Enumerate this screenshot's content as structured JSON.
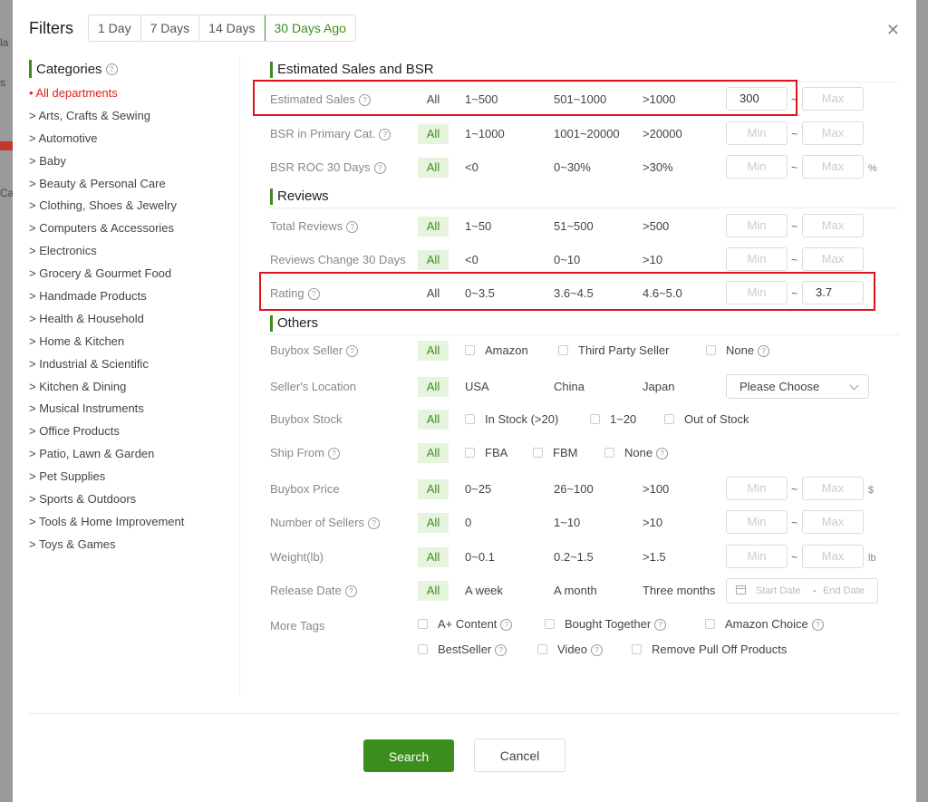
{
  "header": {
    "title": "Filters",
    "ranges": [
      "1 Day",
      "7 Days",
      "14 Days",
      "30 Days Ago"
    ],
    "active_range": "30 Days Ago"
  },
  "background": {
    "frag1": "la",
    "frag2": "s",
    "frag3": "Ca"
  },
  "categories": {
    "title": "Categories",
    "items": [
      "• All departments",
      "> Arts, Crafts & Sewing",
      "> Automotive",
      "> Baby",
      "> Beauty & Personal Care",
      "> Clothing, Shoes & Jewelry",
      "> Computers & Accessories",
      "> Electronics",
      "> Grocery & Gourmet Food",
      "> Handmade Products",
      "> Health & Household",
      "> Home & Kitchen",
      "> Industrial & Scientific",
      "> Kitchen & Dining",
      "> Musical Instruments",
      "> Office Products",
      "> Patio, Lawn & Garden",
      "> Pet Supplies",
      "> Sports & Outdoors",
      "> Tools & Home Improvement",
      "> Toys & Games"
    ],
    "active_index": 0
  },
  "sections": {
    "sales": "Estimated Sales and BSR",
    "reviews": "Reviews",
    "others": "Others"
  },
  "rows": {
    "est_sales": {
      "label": "Estimated Sales",
      "all": "All",
      "o1": "1~500",
      "o2": "501~1000",
      "o3": ">1000",
      "min": "300",
      "max_ph": "Max",
      "tilde": "~"
    },
    "bsr": {
      "label": "BSR in Primary Cat.",
      "all": "All",
      "o1": "1~1000",
      "o2": "1001~20000",
      "o3": ">20000",
      "min_ph": "Min",
      "max_ph": "Max",
      "tilde": "~"
    },
    "bsr_roc": {
      "label": "BSR ROC 30 Days",
      "all": "All",
      "o1": "<0",
      "o2": "0~30%",
      "o3": ">30%",
      "min_ph": "Min",
      "max_ph": "Max",
      "tilde": "~",
      "unit": "%"
    },
    "total_reviews": {
      "label": "Total Reviews",
      "all": "All",
      "o1": "1~50",
      "o2": "51~500",
      "o3": ">500",
      "min_ph": "Min",
      "max_ph": "Max",
      "tilde": "~"
    },
    "reviews_change": {
      "label": "Reviews Change 30 Days",
      "all": "All",
      "o1": "<0",
      "o2": "0~10",
      "o3": ">10",
      "min_ph": "Min",
      "max_ph": "Max",
      "tilde": "~"
    },
    "rating": {
      "label": "Rating",
      "all": "All",
      "o1": "0~3.5",
      "o2": "3.6~4.5",
      "o3": "4.6~5.0",
      "min_ph": "Min",
      "max": "3.7",
      "tilde": "~"
    },
    "buybox_seller": {
      "label": "Buybox Seller",
      "all": "All",
      "c1": "Amazon",
      "c2": "Third Party Seller",
      "c3": "None"
    },
    "seller_location": {
      "label": "Seller's Location",
      "all": "All",
      "o1": "USA",
      "o2": "China",
      "o3": "Japan",
      "select": "Please Choose"
    },
    "buybox_stock": {
      "label": "Buybox Stock",
      "all": "All",
      "c1": "In Stock (>20)",
      "c2": "1~20",
      "c3": "Out of Stock"
    },
    "ship_from": {
      "label": "Ship From",
      "all": "All",
      "c1": "FBA",
      "c2": "FBM",
      "c3": "None"
    },
    "buybox_price": {
      "label": "Buybox Price",
      "all": "All",
      "o1": "0~25",
      "o2": "26~100",
      "o3": ">100",
      "min_ph": "Min",
      "max_ph": "Max",
      "tilde": "~",
      "unit": "$"
    },
    "num_sellers": {
      "label": "Number of Sellers",
      "all": "All",
      "o1": "0",
      "o2": "1~10",
      "o3": ">10",
      "min_ph": "Min",
      "max_ph": "Max",
      "tilde": "~"
    },
    "weight": {
      "label": "Weight(lb)",
      "all": "All",
      "o1": "0~0.1",
      "o2": "0.2~1.5",
      "o3": ">1.5",
      "min_ph": "Min",
      "max_ph": "Max",
      "tilde": "~",
      "unit": "lb"
    },
    "release_date": {
      "label": "Release Date",
      "all": "All",
      "o1": "A week",
      "o2": "A month",
      "o3": "Three months",
      "start_ph": "Start Date",
      "dash": "-",
      "end_ph": "End Date"
    },
    "more_tags": {
      "label": "More Tags",
      "t1": "A+ Content",
      "t2": "Bought Together",
      "t3": "Amazon Choice",
      "t4": "BestSeller",
      "t5": "Video",
      "t6": "Remove Pull Off Products"
    }
  },
  "footer": {
    "search": "Search",
    "cancel": "Cancel"
  },
  "colors": {
    "accent": "#3b8e1e",
    "highlight_box": "#e0121b",
    "active_category": "#e02020"
  }
}
